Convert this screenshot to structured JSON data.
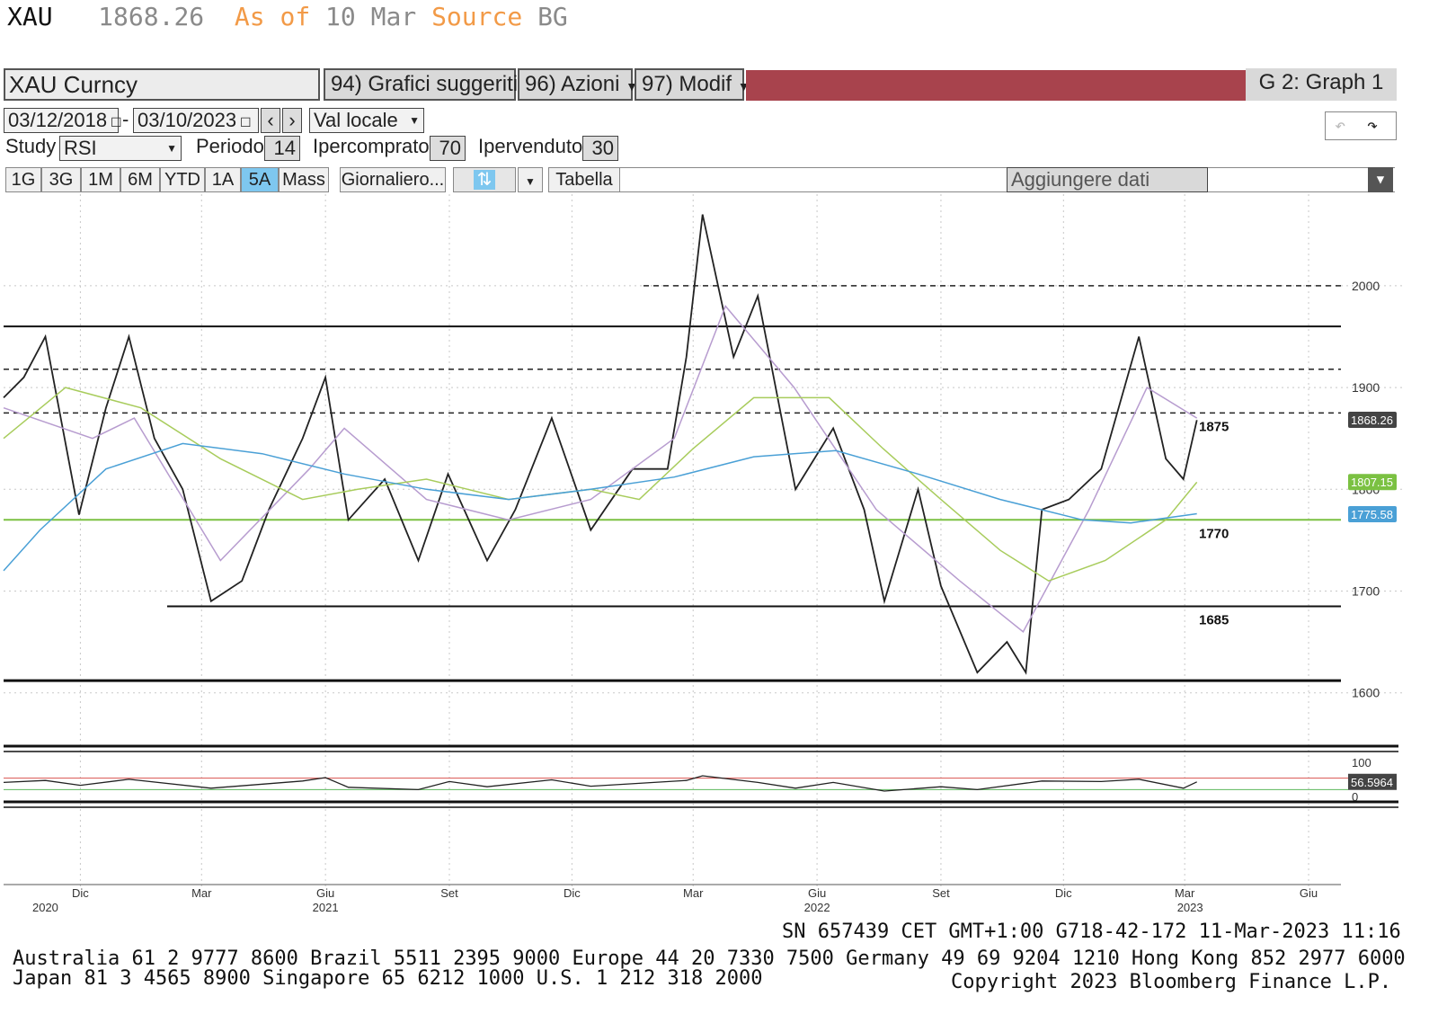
{
  "header": {
    "ticker": "XAU",
    "price": "1868.26",
    "as_of_label": "As of",
    "as_of_date": "10 Mar",
    "source_label": "Source",
    "source_value": "BG"
  },
  "toolbar": {
    "security": "XAU Curncy",
    "suggested": "94) Grafici suggeriti",
    "actions": "96) Azioni",
    "modify": "97) Modif",
    "graph_label": "G 2: Graph 1"
  },
  "controls": {
    "start_date": "03/12/2018",
    "end_date": "03/10/2023",
    "currency": "Val locale",
    "study_label": "Study",
    "study": "RSI",
    "period_label": "Periodo",
    "period": "14",
    "overbought_label": "Ipercomprato",
    "overbought": "70",
    "oversold_label": "Ipervenduto",
    "oversold": "30",
    "add_data": "Aggiungere dati"
  },
  "ranges": {
    "tabs": [
      "1G",
      "3G",
      "1M",
      "6M",
      "YTD",
      "1A",
      "5A",
      "Mass"
    ],
    "selected": "5A",
    "frequency": "Giornaliero...",
    "table": "Tabella"
  },
  "chart_data": {
    "type": "line",
    "title": "",
    "ylim": [
      1560,
      2090
    ],
    "y_ticks": [
      1600,
      1700,
      1800,
      1900,
      2000
    ],
    "x_month_labels": [
      {
        "label": "Dic",
        "date": "2020-12-01"
      },
      {
        "label": "Mar",
        "date": "2021-03-01"
      },
      {
        "label": "Giu",
        "date": "2021-06-01"
      },
      {
        "label": "Set",
        "date": "2021-09-01"
      },
      {
        "label": "Dic",
        "date": "2021-12-01"
      },
      {
        "label": "Mar",
        "date": "2022-03-01"
      },
      {
        "label": "Giu",
        "date": "2022-06-01"
      },
      {
        "label": "Set",
        "date": "2022-09-01"
      },
      {
        "label": "Dic",
        "date": "2022-12-01"
      },
      {
        "label": "Mar",
        "date": "2023-03-01"
      },
      {
        "label": "Giu",
        "date": "2023-06-01"
      }
    ],
    "x_year_labels": [
      {
        "label": "2020",
        "date": "2020-11-05"
      },
      {
        "label": "2021",
        "date": "2021-06-01"
      },
      {
        "label": "2022",
        "date": "2022-06-01"
      },
      {
        "label": "2023",
        "date": "2023-03-05"
      }
    ],
    "x_range": [
      "2020-10-05",
      "2023-06-25"
    ],
    "series": [
      {
        "name": "",
        "color": "#222222",
        "values": [
          [
            "2020-10-05",
            1890
          ],
          [
            "2020-10-20",
            1910
          ],
          [
            "2020-11-05",
            1950
          ],
          [
            "2020-11-30",
            1775
          ],
          [
            "2020-12-20",
            1880
          ],
          [
            "2021-01-06",
            1950
          ],
          [
            "2021-01-25",
            1850
          ],
          [
            "2021-02-15",
            1800
          ],
          [
            "2021-03-08",
            1690
          ],
          [
            "2021-03-31",
            1710
          ],
          [
            "2021-04-20",
            1780
          ],
          [
            "2021-05-15",
            1850
          ],
          [
            "2021-06-01",
            1910
          ],
          [
            "2021-06-18",
            1770
          ],
          [
            "2021-07-15",
            1810
          ],
          [
            "2021-08-09",
            1730
          ],
          [
            "2021-08-31",
            1815
          ],
          [
            "2021-09-29",
            1730
          ],
          [
            "2021-10-20",
            1780
          ],
          [
            "2021-11-16",
            1870
          ],
          [
            "2021-12-15",
            1760
          ],
          [
            "2022-01-15",
            1820
          ],
          [
            "2022-02-10",
            1820
          ],
          [
            "2022-02-24",
            1930
          ],
          [
            "2022-03-08",
            2070
          ],
          [
            "2022-03-31",
            1930
          ],
          [
            "2022-04-18",
            1990
          ],
          [
            "2022-05-16",
            1800
          ],
          [
            "2022-06-13",
            1860
          ],
          [
            "2022-07-06",
            1780
          ],
          [
            "2022-07-21",
            1690
          ],
          [
            "2022-08-15",
            1800
          ],
          [
            "2022-09-01",
            1705
          ],
          [
            "2022-09-28",
            1620
          ],
          [
            "2022-10-20",
            1650
          ],
          [
            "2022-11-03",
            1620
          ],
          [
            "2022-11-15",
            1780
          ],
          [
            "2022-12-05",
            1790
          ],
          [
            "2022-12-29",
            1820
          ],
          [
            "2023-01-26",
            1950
          ],
          [
            "2023-02-15",
            1830
          ],
          [
            "2023-02-28",
            1810
          ],
          [
            "2023-03-10",
            1868
          ]
        ]
      },
      {
        "name": "",
        "color": "#b79ccf",
        "values": [
          [
            "2020-10-05",
            1880
          ],
          [
            "2020-12-10",
            1850
          ],
          [
            "2021-01-10",
            1870
          ],
          [
            "2021-03-15",
            1730
          ],
          [
            "2021-05-20",
            1820
          ],
          [
            "2021-06-15",
            1860
          ],
          [
            "2021-08-15",
            1790
          ],
          [
            "2021-10-15",
            1770
          ],
          [
            "2021-12-15",
            1790
          ],
          [
            "2022-02-15",
            1850
          ],
          [
            "2022-03-25",
            1980
          ],
          [
            "2022-05-15",
            1900
          ],
          [
            "2022-07-15",
            1780
          ],
          [
            "2022-09-15",
            1710
          ],
          [
            "2022-11-01",
            1660
          ],
          [
            "2022-12-20",
            1780
          ],
          [
            "2023-02-01",
            1900
          ],
          [
            "2023-03-10",
            1870
          ]
        ]
      },
      {
        "name": "",
        "color": "#a8cc5c",
        "values": [
          [
            "2020-10-05",
            1850
          ],
          [
            "2020-11-20",
            1900
          ],
          [
            "2021-01-15",
            1880
          ],
          [
            "2021-03-15",
            1830
          ],
          [
            "2021-05-15",
            1790
          ],
          [
            "2021-06-25",
            1800
          ],
          [
            "2021-08-15",
            1810
          ],
          [
            "2021-10-15",
            1790
          ],
          [
            "2021-12-15",
            1800
          ],
          [
            "2022-01-20",
            1790
          ],
          [
            "2022-03-01",
            1840
          ],
          [
            "2022-04-15",
            1890
          ],
          [
            "2022-06-10",
            1890
          ],
          [
            "2022-07-20",
            1840
          ],
          [
            "2022-09-01",
            1790
          ],
          [
            "2022-10-15",
            1740
          ],
          [
            "2022-11-20",
            1710
          ],
          [
            "2023-01-01",
            1730
          ],
          [
            "2023-02-15",
            1770
          ],
          [
            "2023-03-10",
            1807
          ]
        ]
      },
      {
        "name": "",
        "color": "#4aa0d6",
        "values": [
          [
            "2020-10-05",
            1720
          ],
          [
            "2020-11-01",
            1760
          ],
          [
            "2020-12-20",
            1820
          ],
          [
            "2021-02-15",
            1845
          ],
          [
            "2021-04-15",
            1835
          ],
          [
            "2021-06-15",
            1815
          ],
          [
            "2021-08-15",
            1800
          ],
          [
            "2021-10-15",
            1790
          ],
          [
            "2021-12-15",
            1800
          ],
          [
            "2022-02-15",
            1812
          ],
          [
            "2022-04-15",
            1832
          ],
          [
            "2022-06-15",
            1838
          ],
          [
            "2022-08-15",
            1815
          ],
          [
            "2022-10-15",
            1790
          ],
          [
            "2022-12-15",
            1770
          ],
          [
            "2023-01-20",
            1767
          ],
          [
            "2023-03-10",
            1776
          ]
        ]
      }
    ],
    "hlines": [
      {
        "value": 1770,
        "label": "1770",
        "color": "#7bc142",
        "style": "solid"
      },
      {
        "value": 1685,
        "label": "1685",
        "color": "#111111",
        "style": "solid"
      },
      {
        "value": 1612,
        "label": "",
        "color": "#111111",
        "style": "solid"
      },
      {
        "value": 1960,
        "label": "",
        "color": "#111111",
        "style": "solid"
      },
      {
        "value": 2000,
        "label": "",
        "color": "#222222",
        "style": "dashed"
      },
      {
        "value": 1918,
        "label": "",
        "color": "#222222",
        "style": "dashed"
      },
      {
        "value": 1875,
        "label": "1875",
        "color": "#222222",
        "style": "dashed"
      }
    ],
    "price_tags": [
      {
        "value": 1868.26,
        "label": "1868.26",
        "bg": "#444444",
        "fg": "#ffffff"
      },
      {
        "value": 1807.15,
        "label": "1807.15",
        "bg": "#7bc142",
        "fg": "#ffffff"
      },
      {
        "value": 1775.58,
        "label": "1775.58",
        "bg": "#4aa0d6",
        "fg": "#ffffff"
      }
    ],
    "rsi": {
      "ylim": [
        0,
        100
      ],
      "y_ticks": [
        "100",
        "0"
      ],
      "last": "56.5964",
      "overbought": 70,
      "oversold": 30,
      "values": [
        [
          "2020-10-05",
          55
        ],
        [
          "2020-11-05",
          62
        ],
        [
          "2020-12-01",
          45
        ],
        [
          "2021-01-06",
          66
        ],
        [
          "2021-03-08",
          35
        ],
        [
          "2021-05-15",
          60
        ],
        [
          "2021-06-01",
          72
        ],
        [
          "2021-06-18",
          38
        ],
        [
          "2021-08-09",
          30
        ],
        [
          "2021-09-01",
          58
        ],
        [
          "2021-09-29",
          40
        ],
        [
          "2021-11-16",
          64
        ],
        [
          "2021-12-15",
          42
        ],
        [
          "2022-02-24",
          62
        ],
        [
          "2022-03-08",
          78
        ],
        [
          "2022-04-18",
          55
        ],
        [
          "2022-05-16",
          35
        ],
        [
          "2022-06-13",
          55
        ],
        [
          "2022-07-21",
          25
        ],
        [
          "2022-09-01",
          40
        ],
        [
          "2022-09-28",
          30
        ],
        [
          "2022-11-15",
          60
        ],
        [
          "2022-12-29",
          58
        ],
        [
          "2023-01-26",
          66
        ],
        [
          "2023-02-28",
          35
        ],
        [
          "2023-03-10",
          57
        ]
      ]
    }
  },
  "footer": {
    "session": "SN 657439 CET   GMT+1:00 G718-42-172 11-Mar-2023 11:16",
    "line1": "Australia 61 2 9777 8600 Brazil 5511 2395 9000 Europe 44 20 7330 7500 Germany 49 69 9204 1210 Hong Kong 852 2977 6000",
    "line2_left": "Japan 81 3 4565 8900        Singapore 65 6212 1000       U.S. 1 212 318 2000",
    "line2_right": "Copyright 2023 Bloomberg Finance L.P."
  }
}
